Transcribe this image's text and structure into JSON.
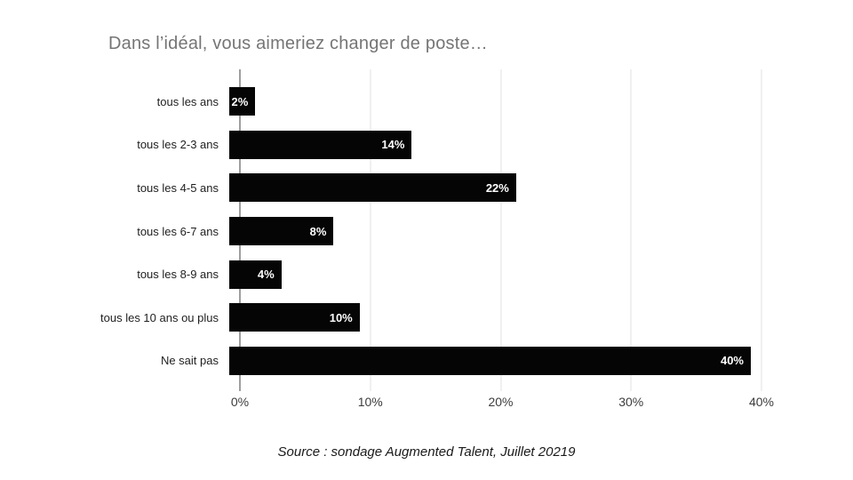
{
  "title": "Dans l’idéal, vous aimeriez changer de poste…",
  "source": "Source : sondage Augmented Talent, Juillet 20219",
  "colors": {
    "bar": "#050505",
    "title": "#757575",
    "axis_line": "#9e9e9e",
    "gridline": "#e0e0e0",
    "value_label": "#ffffff",
    "category_label": "#1f1f1f",
    "tick_label": "#3c3c3c",
    "source_text": "#1a1a1a"
  },
  "chart_data": {
    "type": "bar",
    "orientation": "horizontal",
    "title": "Dans l’idéal, vous aimeriez changer de poste…",
    "categories": [
      "tous les ans",
      "tous les 2-3 ans",
      "tous les 4-5 ans",
      "tous les 6-7 ans",
      "tous les 8-9 ans",
      "tous les 10 ans ou plus",
      "Ne sait pas"
    ],
    "values": [
      2,
      14,
      22,
      8,
      4,
      10,
      40
    ],
    "value_labels": [
      "2%",
      "14%",
      "22%",
      "8%",
      "4%",
      "10%",
      "40%"
    ],
    "x_ticks": [
      "0%",
      "10%",
      "20%",
      "30%",
      "40%"
    ],
    "xlim": [
      0,
      40
    ],
    "xlabel": "",
    "ylabel": "",
    "grid": "vertical-only",
    "legend": "none"
  }
}
